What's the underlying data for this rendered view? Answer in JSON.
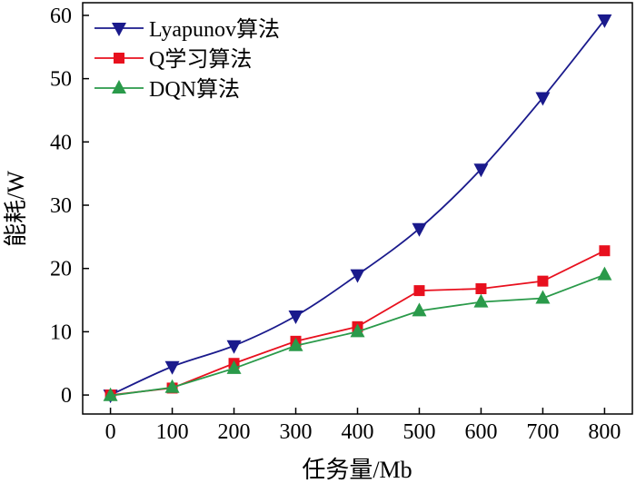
{
  "chart_data": {
    "type": "line",
    "xlabel": "任务量/Mb",
    "ylabel": "能耗/W",
    "xlim": [
      -45,
      845
    ],
    "ylim": [
      -3,
      62
    ],
    "xticks": [
      0,
      100,
      200,
      300,
      400,
      500,
      600,
      700,
      800
    ],
    "yticks": [
      0,
      10,
      20,
      30,
      40,
      50,
      60
    ],
    "grid": false,
    "legend_position": "top-left",
    "x": [
      0,
      100,
      200,
      300,
      400,
      500,
      600,
      700,
      800
    ],
    "series": [
      {
        "name": "Lyapunov算法",
        "values": [
          0,
          4.5,
          7.8,
          12.5,
          19,
          26.3,
          35.7,
          47,
          59.3
        ],
        "color": "#1a1a8c",
        "marker": "triangle-down",
        "smooth": true
      },
      {
        "name": "Q学习算法",
        "values": [
          0,
          1.1,
          5,
          8.5,
          10.8,
          16.5,
          16.8,
          18,
          22.8
        ],
        "color": "#e8101e",
        "marker": "square",
        "smooth": false
      },
      {
        "name": "DQN算法",
        "values": [
          -0.1,
          1.2,
          4.2,
          7.8,
          10,
          13.3,
          14.7,
          15.3,
          19
        ],
        "color": "#2a9a4a",
        "marker": "triangle-up",
        "smooth": false
      }
    ]
  }
}
